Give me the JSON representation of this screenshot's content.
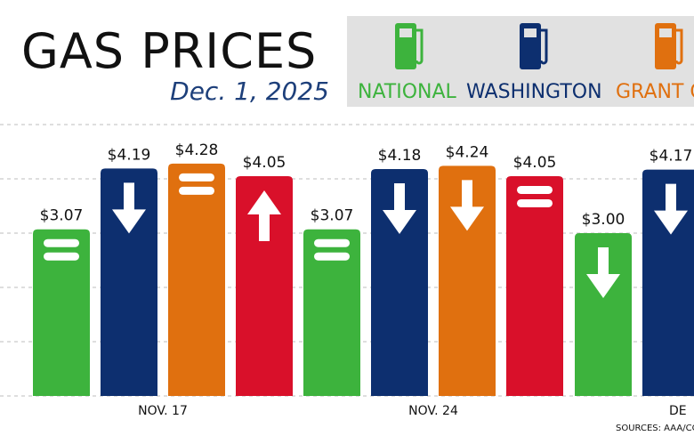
{
  "chart_data": {
    "type": "bar",
    "title": "GAS PRICES",
    "subtitle": "Dec. 1, 2025",
    "source": "SOURCES: AAA/CO",
    "categories": [
      "NOV. 17",
      "NOV. 24",
      "DE"
    ],
    "series": [
      {
        "name": "NATIONAL",
        "color": "#3db33d",
        "values": [
          3.07,
          3.07,
          3.0
        ],
        "value_labels": [
          "$3.07",
          "$3.07",
          "$3.00"
        ],
        "icons": [
          "equal",
          "equal",
          "down"
        ]
      },
      {
        "name": "WASHINGTON",
        "color": "#0d2f6f",
        "values": [
          4.19,
          4.18,
          4.17
        ],
        "value_labels": [
          "$4.19",
          "$4.18",
          "$4.17"
        ],
        "icons": [
          "down",
          "down",
          "down"
        ]
      },
      {
        "name": "GRANT C",
        "color": "#e0700f",
        "values": [
          4.28,
          4.24,
          null
        ],
        "value_labels": [
          "$4.28",
          "$4.24",
          null
        ],
        "icons": [
          "equal",
          "down",
          null
        ]
      },
      {
        "color": "#d9102a",
        "values": [
          4.05,
          4.05,
          null
        ],
        "value_labels": [
          "$4.05",
          "$4.05",
          null
        ],
        "icons": [
          "up",
          "equal",
          null
        ]
      }
    ],
    "ylim": [
      0,
      5
    ],
    "yticks": [
      0,
      1,
      2,
      3,
      4,
      5
    ],
    "grid": true
  }
}
